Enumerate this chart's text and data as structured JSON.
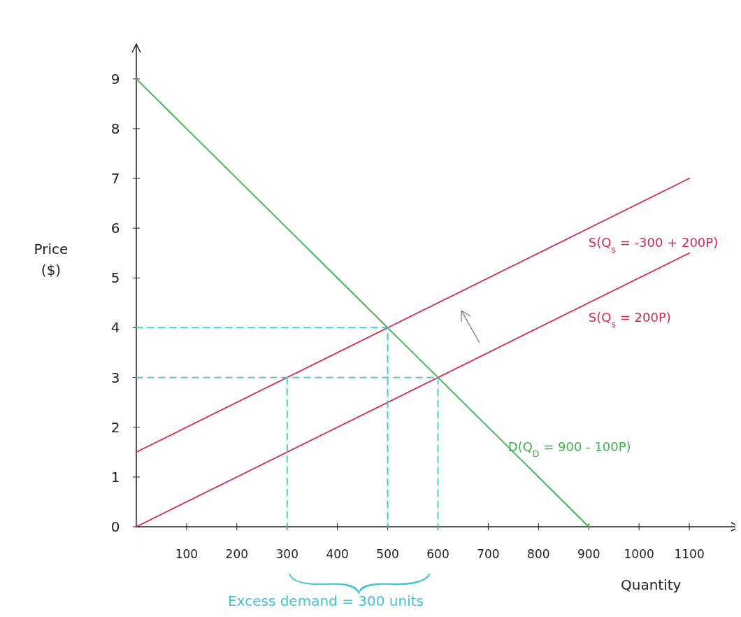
{
  "chart_data": {
    "type": "line",
    "xlabel": "Quantity",
    "ylabel": "Price ($)",
    "xlim": [
      0,
      1200
    ],
    "ylim": [
      0,
      9.7
    ],
    "xticks": [
      100,
      200,
      300,
      400,
      500,
      600,
      700,
      800,
      900,
      1000,
      1100
    ],
    "yticks": [
      0,
      1,
      2,
      3,
      4,
      5,
      6,
      7,
      8,
      9
    ],
    "grid": false,
    "marker": "none",
    "series": [
      {
        "name": "S(Q$_{s}$ = -300 + 200P)",
        "color": "#d8284f",
        "x": [
          0,
          1100
        ],
        "values": [
          1.5,
          7
        ]
      },
      {
        "name": "S(Q$_{s}$ = 200P)",
        "color": "#d8284f",
        "x": [
          0,
          1100
        ],
        "values": [
          0,
          5.5
        ]
      },
      {
        "name": "D(Q$_{D}$ = 900 - 100P)",
        "color": "#3cb54a",
        "x": [
          0,
          900
        ],
        "values": [
          9,
          0
        ]
      },
      {
        "color": "#3fc3d8",
        "line_style": "dashed",
        "x": [
          0,
          500,
          500
        ],
        "values": [
          4,
          4,
          0
        ]
      },
      {
        "color": "#3fc3d8",
        "line_style": "dashed",
        "x": [
          0,
          600,
          600
        ],
        "values": [
          3,
          3,
          0
        ]
      },
      {
        "color": "#3fc3d8",
        "line_style": "dashed",
        "x": [
          300,
          300
        ],
        "values": [
          3,
          0
        ]
      }
    ],
    "annotations": [
      "Excess demand = 300 units"
    ]
  }
}
